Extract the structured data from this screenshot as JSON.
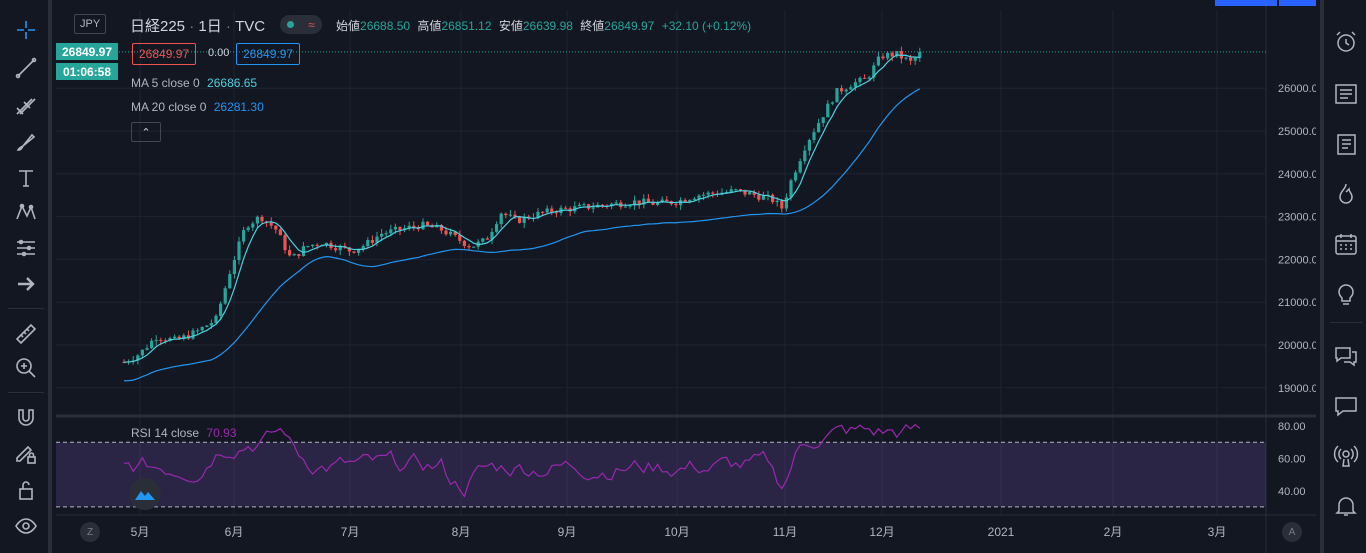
{
  "header": {
    "currency": "JPY",
    "symbol": "日経225",
    "interval": "1日",
    "exchange": "TVC",
    "open_label": "始値",
    "open_value": "26688.50",
    "high_label": "高値",
    "high_value": "26851.12",
    "low_label": "安値",
    "low_value": "26639.98",
    "close_label": "終値",
    "close_value": "26849.97",
    "change": "+32.10 (+0.12%)"
  },
  "trade": {
    "sell": "26849.97",
    "spread": "0.00",
    "buy": "26849.97"
  },
  "ma5": {
    "label": "MA 5 close 0",
    "value": "26686.65"
  },
  "ma20": {
    "label": "MA 20 close 0",
    "value": "26281.30"
  },
  "price_axis": {
    "current_price": "26849.97",
    "countdown": "01:06:58",
    "ticks": [
      "26000.00",
      "25000.00",
      "24000.00",
      "23000.00",
      "22000.00",
      "21000.00",
      "20000.00",
      "19000.00"
    ]
  },
  "rsi": {
    "label": "RSI 14 close",
    "value": "70.93",
    "ticks": [
      "80.00",
      "60.00",
      "40.00"
    ]
  },
  "time_axis": {
    "left_button": "Z",
    "right_button": "A",
    "labels": [
      "5月",
      "6月",
      "7月",
      "8月",
      "9月",
      "10月",
      "11月",
      "12月",
      "2021",
      "2月",
      "3月"
    ]
  },
  "colors": {
    "up": "#26a69a",
    "down": "#ef5350",
    "ma5": "#4dd0e1",
    "ma20": "#2196f3",
    "rsi": "#9c27b0"
  },
  "icons": {
    "left": [
      "crosshair-icon",
      "trend-line-icon",
      "fib-icon",
      "brush-icon",
      "text-icon",
      "pattern-icon",
      "prediction-icon",
      "arrow-icon",
      "ruler-icon",
      "zoom-in-icon",
      "magnet-icon",
      "lock-pencil-icon",
      "lock-icon",
      "eye-icon"
    ],
    "right": [
      "alarm-clock-icon",
      "news-icon",
      "watchlist-icon",
      "hotlist-icon",
      "calendar-icon",
      "ideas-icon",
      "chat-icon",
      "messages-icon",
      "stream-icon",
      "notifications-icon"
    ]
  }
}
